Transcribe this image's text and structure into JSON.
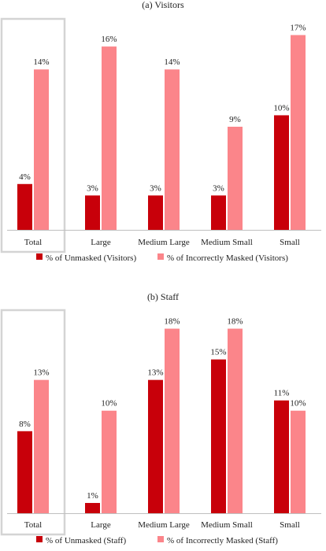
{
  "colors": {
    "unmasked": "#c8000a",
    "incorrect": "#fb858a",
    "axis": "#bfbfbf",
    "highlight_box": "#d4d4d4"
  },
  "chart_data": [
    {
      "type": "bar",
      "title": "(a)   Visitors",
      "categories": [
        "Total",
        "Large",
        "Medium Large",
        "Medium Small",
        "Small"
      ],
      "series": [
        {
          "name": "% of Unmasked (Visitors)",
          "values": [
            4,
            3,
            3,
            3,
            10
          ],
          "labels": [
            "4%",
            "3%",
            "3%",
            "3%",
            "10%"
          ]
        },
        {
          "name": "% of Incorrectly Masked (Visitors)",
          "values": [
            14,
            16,
            14,
            9,
            17
          ],
          "labels": [
            "14%",
            "16%",
            "14%",
            "9%",
            "17%"
          ]
        }
      ],
      "ylim": [
        0,
        18
      ],
      "highlighted_category": "Total",
      "legend_position": "bottom"
    },
    {
      "type": "bar",
      "title": "(b)   Staff",
      "categories": [
        "Total",
        "Large",
        "Medium Large",
        "Medium Small",
        "Small"
      ],
      "series": [
        {
          "name": "% of Unmasked (Staff)",
          "values": [
            8,
            1,
            13,
            15,
            11
          ],
          "labels": [
            "8%",
            "1%",
            "13%",
            "15%",
            "11%"
          ]
        },
        {
          "name": "% of Incorrectly Masked (Staff)",
          "values": [
            13,
            10,
            18,
            18,
            10
          ],
          "labels": [
            "13%",
            "10%",
            "18%",
            "18%",
            "10%"
          ]
        }
      ],
      "ylim": [
        0,
        19.5
      ],
      "highlighted_category": "Total",
      "legend_position": "bottom"
    }
  ]
}
